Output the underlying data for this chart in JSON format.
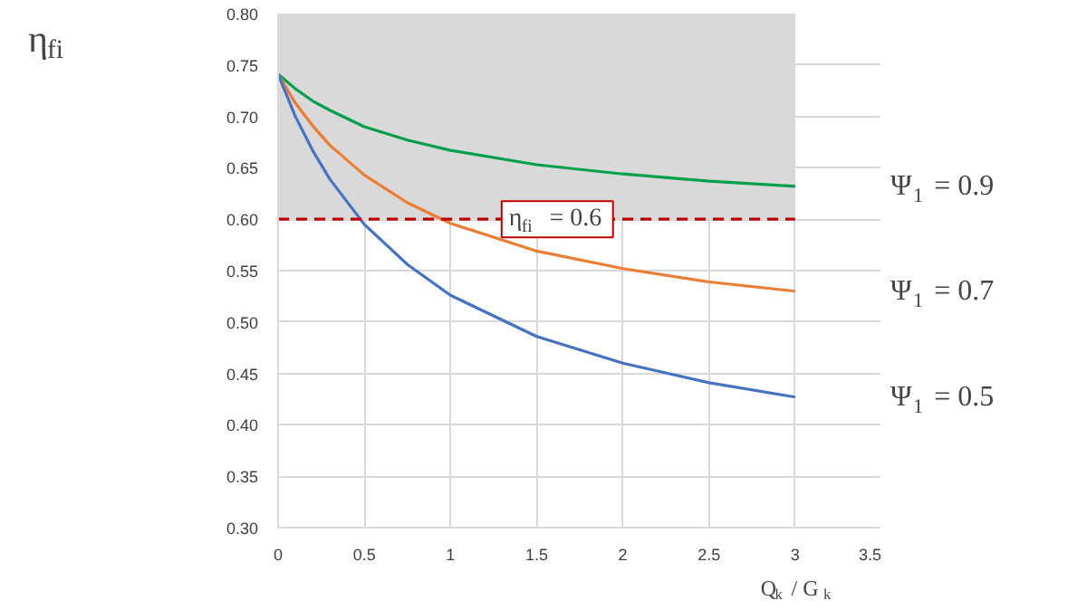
{
  "chart_data": {
    "type": "line",
    "xlabel": "Q$_{k}$ / G$_{k}$",
    "ylabel": "η$_{fi}$",
    "x": [
      0,
      0.1,
      0.2,
      0.3,
      0.5,
      0.75,
      1,
      1.5,
      2,
      2.5,
      3
    ],
    "series": [
      {
        "name": "Ψ$_{1}$ = 0.9",
        "color": "#00a04b",
        "values": [
          0.741,
          0.727,
          0.715,
          0.706,
          0.69,
          0.677,
          0.667,
          0.653,
          0.644,
          0.637,
          0.632
        ]
      },
      {
        "name": "Ψ$_{1}$ = 0.7",
        "color": "#ed7d31",
        "values": [
          0.741,
          0.713,
          0.691,
          0.672,
          0.643,
          0.616,
          0.596,
          0.569,
          0.552,
          0.539,
          0.53
        ]
      },
      {
        "name": "Ψ$_{1}$ = 0.5",
        "color": "#4472c4",
        "values": [
          0.741,
          0.7,
          0.667,
          0.639,
          0.595,
          0.556,
          0.526,
          0.486,
          0.46,
          0.441,
          0.427
        ]
      }
    ],
    "xlim": [
      0,
      3.5
    ],
    "xticks": [
      0,
      0.5,
      1,
      1.5,
      2,
      2.5,
      3,
      3.5
    ],
    "ylim": [
      0.3,
      0.8
    ],
    "yticks": [
      {
        "value": 0.3,
        "label": "0.30"
      },
      {
        "value": 0.35,
        "label": "0.35"
      },
      {
        "value": 0.4,
        "label": "0.40"
      },
      {
        "value": 0.45,
        "label": "0.45"
      },
      {
        "value": 0.5,
        "label": "0.50"
      },
      {
        "value": 0.55,
        "label": "0.55"
      },
      {
        "value": 0.6,
        "label": "0.60"
      },
      {
        "value": 0.65,
        "label": "0.65"
      },
      {
        "value": 0.7,
        "label": "0.70"
      },
      {
        "value": 0.75,
        "label": "0.75"
      },
      {
        "value": 0.8,
        "label": "0.80"
      }
    ],
    "ref_lines": [
      {
        "axis": "y",
        "value": 0.6,
        "label": "η$_{fi}$ = 0.6",
        "color": "#c00000",
        "line_style": "dashed"
      }
    ],
    "bands": [
      {
        "axis": "y",
        "from": 0.6,
        "to": 0.8,
        "color": "#d9d9d9"
      }
    ],
    "grid": true,
    "legend": false,
    "marker": "none",
    "line_style": "solid"
  }
}
